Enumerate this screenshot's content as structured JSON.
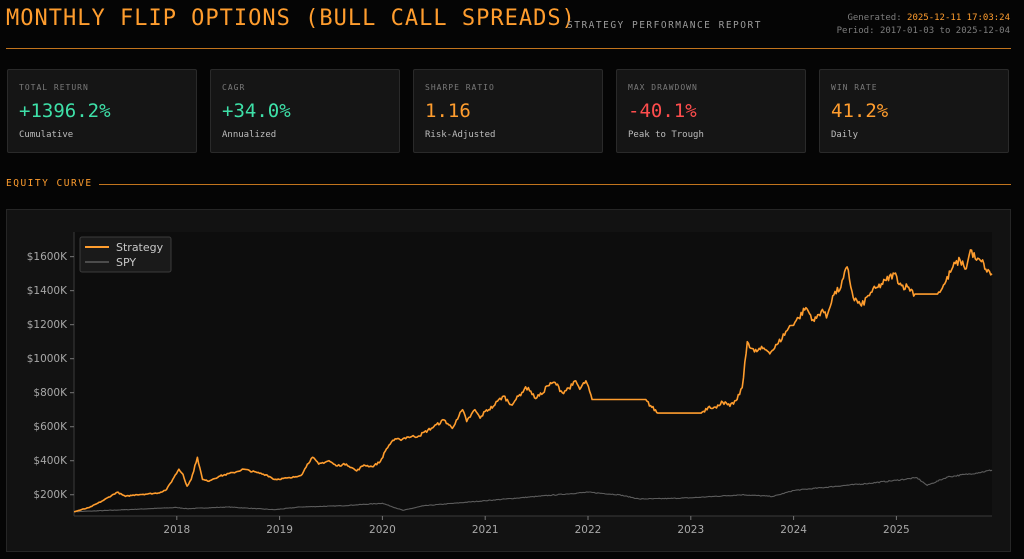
{
  "header": {
    "title": "MONTHLY FLIP OPTIONS (BULL CALL SPREADS)",
    "subtitle": "STRATEGY PERFORMANCE REPORT",
    "generated_label": "Generated:",
    "generated_value": "2025-12-11 17:03:24",
    "period_label": "Period:",
    "period_value": "2017-01-03 to 2025-12-04"
  },
  "kpis": [
    {
      "label": "TOTAL RETURN",
      "value": "+1396.2%",
      "sub": "Cumulative",
      "color": "#3ee0a8"
    },
    {
      "label": "CAGR",
      "value": "+34.0%",
      "sub": "Annualized",
      "color": "#3ee0a8"
    },
    {
      "label": "SHARPE RATIO",
      "value": "1.16",
      "sub": "Risk-Adjusted",
      "color": "#ff9d2e"
    },
    {
      "label": "MAX DRAWDOWN",
      "value": "-40.1%",
      "sub": "Peak to Trough",
      "color": "#ff4d4d"
    },
    {
      "label": "WIN RATE",
      "value": "41.2%",
      "sub": "Daily",
      "color": "#ff9d2e"
    }
  ],
  "section": {
    "equity_title": "EQUITY CURVE"
  },
  "chart_data": {
    "type": "line",
    "title": "",
    "xlabel": "",
    "ylabel": "",
    "x_ticks": [
      "2018",
      "2019",
      "2020",
      "2021",
      "2022",
      "2023",
      "2024",
      "2025"
    ],
    "y_ticks": [
      "$200K",
      "$400K",
      "$600K",
      "$800K",
      "$1000K",
      "$1200K",
      "$1400K",
      "$1600K"
    ],
    "x_range": [
      2017.0,
      2025.93
    ],
    "ylim": [
      75000,
      1745000
    ],
    "grid": false,
    "legend_position": "top-left",
    "series": [
      {
        "name": "Strategy",
        "color": "#ff9d2e",
        "points": [
          [
            2017.0,
            100000
          ],
          [
            2017.15,
            125000
          ],
          [
            2017.28,
            165000
          ],
          [
            2017.42,
            215000
          ],
          [
            2017.5,
            190000
          ],
          [
            2017.6,
            200000
          ],
          [
            2017.72,
            205000
          ],
          [
            2017.82,
            210000
          ],
          [
            2017.9,
            230000
          ],
          [
            2017.96,
            290000
          ],
          [
            2018.02,
            350000
          ],
          [
            2018.06,
            320000
          ],
          [
            2018.1,
            250000
          ],
          [
            2018.14,
            290000
          ],
          [
            2018.2,
            420000
          ],
          [
            2018.25,
            290000
          ],
          [
            2018.3,
            280000
          ],
          [
            2018.42,
            310000
          ],
          [
            2018.55,
            330000
          ],
          [
            2018.65,
            350000
          ],
          [
            2018.78,
            330000
          ],
          [
            2018.88,
            315000
          ],
          [
            2018.95,
            290000
          ],
          [
            2019.12,
            300000
          ],
          [
            2019.22,
            320000
          ],
          [
            2019.27,
            380000
          ],
          [
            2019.32,
            420000
          ],
          [
            2019.38,
            380000
          ],
          [
            2019.48,
            400000
          ],
          [
            2019.55,
            370000
          ],
          [
            2019.65,
            380000
          ],
          [
            2019.75,
            340000
          ],
          [
            2019.82,
            375000
          ],
          [
            2019.9,
            365000
          ],
          [
            2019.98,
            395000
          ],
          [
            2020.04,
            470000
          ],
          [
            2020.1,
            520000
          ],
          [
            2020.17,
            525000
          ],
          [
            2020.25,
            540000
          ],
          [
            2020.35,
            545000
          ],
          [
            2020.5,
            600000
          ],
          [
            2020.6,
            640000
          ],
          [
            2020.68,
            590000
          ],
          [
            2020.72,
            640000
          ],
          [
            2020.78,
            700000
          ],
          [
            2020.82,
            630000
          ],
          [
            2020.9,
            700000
          ],
          [
            2020.95,
            650000
          ],
          [
            2021.0,
            690000
          ],
          [
            2021.08,
            720000
          ],
          [
            2021.12,
            750000
          ],
          [
            2021.18,
            780000
          ],
          [
            2021.25,
            730000
          ],
          [
            2021.3,
            760000
          ],
          [
            2021.38,
            820000
          ],
          [
            2021.42,
            830000
          ],
          [
            2021.48,
            770000
          ],
          [
            2021.55,
            790000
          ],
          [
            2021.6,
            840000
          ],
          [
            2021.68,
            860000
          ],
          [
            2021.75,
            800000
          ],
          [
            2021.85,
            845000
          ],
          [
            2021.88,
            870000
          ],
          [
            2021.92,
            820000
          ],
          [
            2021.98,
            870000
          ],
          [
            2022.04,
            760000
          ],
          [
            2022.55,
            760000
          ],
          [
            2022.68,
            680000
          ],
          [
            2023.1,
            680000
          ],
          [
            2023.18,
            720000
          ],
          [
            2023.25,
            710000
          ],
          [
            2023.3,
            750000
          ],
          [
            2023.38,
            720000
          ],
          [
            2023.45,
            760000
          ],
          [
            2023.5,
            830000
          ],
          [
            2023.55,
            1100000
          ],
          [
            2023.62,
            1040000
          ],
          [
            2023.7,
            1060000
          ],
          [
            2023.78,
            1040000
          ],
          [
            2023.85,
            1090000
          ],
          [
            2023.95,
            1180000
          ],
          [
            2024.05,
            1240000
          ],
          [
            2024.12,
            1300000
          ],
          [
            2024.2,
            1220000
          ],
          [
            2024.28,
            1290000
          ],
          [
            2024.32,
            1240000
          ],
          [
            2024.38,
            1370000
          ],
          [
            2024.46,
            1420000
          ],
          [
            2024.52,
            1540000
          ],
          [
            2024.58,
            1360000
          ],
          [
            2024.66,
            1310000
          ],
          [
            2024.75,
            1390000
          ],
          [
            2024.82,
            1420000
          ],
          [
            2024.9,
            1460000
          ],
          [
            2024.98,
            1500000
          ],
          [
            2025.05,
            1430000
          ],
          [
            2025.12,
            1420000
          ],
          [
            2025.18,
            1380000
          ],
          [
            2025.4,
            1380000
          ],
          [
            2025.47,
            1440000
          ],
          [
            2025.55,
            1540000
          ],
          [
            2025.62,
            1580000
          ],
          [
            2025.68,
            1530000
          ],
          [
            2025.72,
            1640000
          ],
          [
            2025.78,
            1580000
          ],
          [
            2025.85,
            1560000
          ],
          [
            2025.88,
            1510000
          ],
          [
            2025.93,
            1500000
          ]
        ]
      },
      {
        "name": "SPY",
        "color": "#5c5c5c",
        "points": [
          [
            2017.0,
            100000
          ],
          [
            2017.5,
            112000
          ],
          [
            2018.0,
            125000
          ],
          [
            2018.1,
            118000
          ],
          [
            2018.5,
            128000
          ],
          [
            2018.95,
            112000
          ],
          [
            2019.2,
            128000
          ],
          [
            2019.6,
            135000
          ],
          [
            2020.0,
            150000
          ],
          [
            2020.2,
            108000
          ],
          [
            2020.4,
            135000
          ],
          [
            2020.8,
            155000
          ],
          [
            2021.0,
            165000
          ],
          [
            2021.5,
            190000
          ],
          [
            2022.0,
            215000
          ],
          [
            2022.3,
            200000
          ],
          [
            2022.5,
            175000
          ],
          [
            2022.8,
            178000
          ],
          [
            2023.0,
            182000
          ],
          [
            2023.5,
            200000
          ],
          [
            2023.8,
            190000
          ],
          [
            2024.0,
            225000
          ],
          [
            2024.5,
            255000
          ],
          [
            2024.7,
            265000
          ],
          [
            2025.0,
            285000
          ],
          [
            2025.2,
            300000
          ],
          [
            2025.3,
            255000
          ],
          [
            2025.5,
            305000
          ],
          [
            2025.8,
            330000
          ],
          [
            2025.93,
            345000
          ]
        ]
      }
    ]
  }
}
